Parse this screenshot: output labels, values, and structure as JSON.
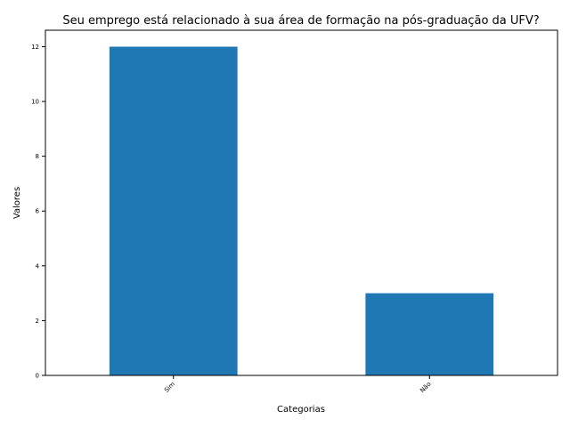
{
  "chart_data": {
    "type": "bar",
    "title": "Seu emprego está relacionado à sua área de formação na pós-graduação da UFV?",
    "xlabel": "Categorias",
    "ylabel": "Valores",
    "categories": [
      "Sim",
      "Não"
    ],
    "values": [
      12,
      3
    ],
    "ylim": [
      0,
      12.6
    ],
    "yticks": [
      0,
      2,
      4,
      6,
      8,
      10,
      12
    ],
    "bar_color": "#1f77b4",
    "grid": false,
    "legend": "none"
  }
}
